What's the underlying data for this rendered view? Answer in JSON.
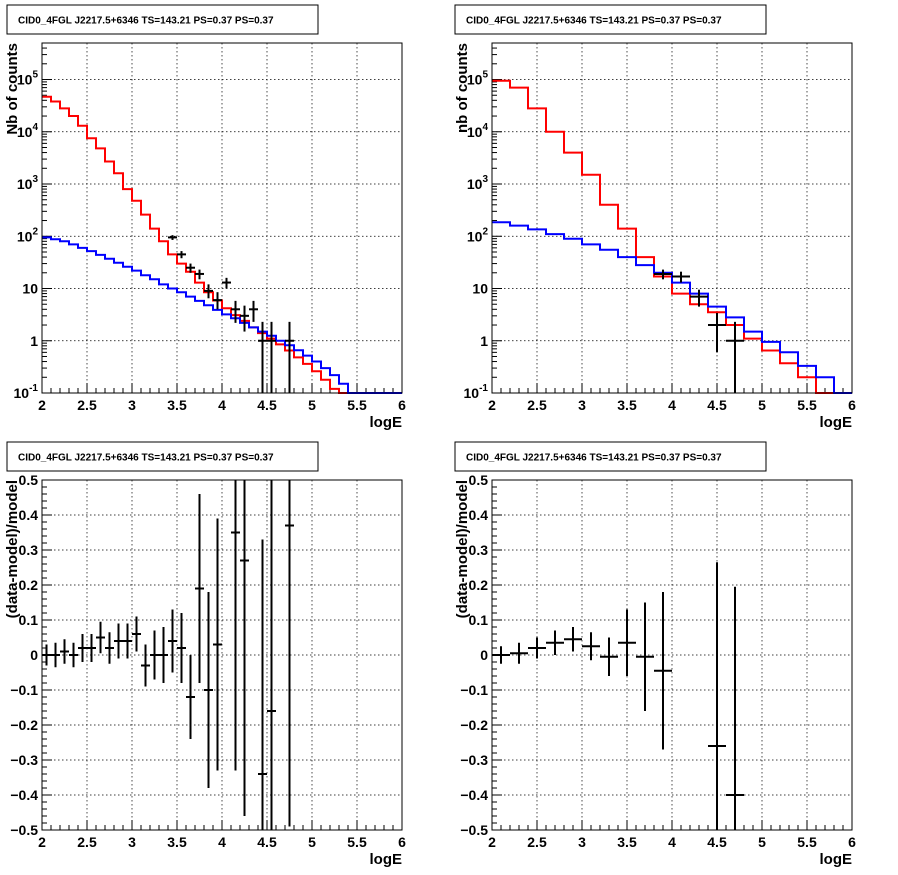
{
  "chart_data": [
    {
      "type": "histogram",
      "title": "CID0_4FGL J2217.5+6346 TS=143.21 PS=0.37 PS=0.37",
      "xlabel": "logE",
      "ylabel": "Nb of counts",
      "xlim": [
        2,
        6
      ],
      "ylim": [
        0.1,
        500000
      ],
      "yscale": "log",
      "grid": true,
      "x_ticks": [
        "2",
        "2.5",
        "3",
        "3.5",
        "4",
        "4.5",
        "5",
        "5.5",
        "6"
      ],
      "y_ticks": [
        "10^-1",
        "1",
        "10",
        "10^2",
        "10^3",
        "10^4",
        "10^5"
      ],
      "series": [
        {
          "kind": "step",
          "color": "#ff0000",
          "bin_edges": [
            2.0,
            2.1,
            2.2,
            2.3,
            2.4,
            2.5,
            2.6,
            2.7,
            2.8,
            2.9,
            3.0,
            3.1,
            3.2,
            3.3,
            3.4,
            3.5,
            3.6,
            3.7,
            3.8,
            3.9,
            4.0,
            4.1,
            4.2,
            4.3,
            4.4,
            4.5,
            4.6,
            4.7,
            4.8,
            4.9,
            5.0,
            5.1,
            5.2,
            5.3,
            5.4,
            5.5,
            5.6,
            5.7,
            5.8,
            5.9,
            6.0
          ],
          "values": [
            47000,
            38000,
            28000,
            20000,
            13000,
            7500,
            4800,
            2700,
            1600,
            800,
            480,
            260,
            140,
            80,
            45,
            30,
            21,
            13,
            8.5,
            5.9,
            4.2,
            3.1,
            2.4,
            1.8,
            1.4,
            1.1,
            0.85,
            0.65,
            0.48,
            0.36,
            0.26,
            0.18,
            0.12,
            0.1,
            0.1,
            0.1,
            0.1,
            0.1,
            0.1,
            0.1
          ]
        },
        {
          "kind": "step",
          "color": "#0000ff",
          "bin_edges": [
            2.0,
            2.1,
            2.2,
            2.3,
            2.4,
            2.5,
            2.6,
            2.7,
            2.8,
            2.9,
            3.0,
            3.1,
            3.2,
            3.3,
            3.4,
            3.5,
            3.6,
            3.7,
            3.8,
            3.9,
            4.0,
            4.1,
            4.2,
            4.3,
            4.4,
            4.5,
            4.6,
            4.7,
            4.8,
            4.9,
            5.0,
            5.1,
            5.2,
            5.3,
            5.4,
            5.5,
            5.6,
            5.7,
            5.8,
            5.9,
            6.0
          ],
          "values": [
            95,
            88,
            80,
            70,
            60,
            52,
            44,
            37,
            31,
            26,
            22,
            18,
            15,
            12,
            10,
            8.5,
            7.0,
            5.8,
            4.8,
            3.9,
            3.2,
            2.7,
            2.2,
            1.8,
            1.5,
            1.25,
            1.0,
            0.82,
            0.66,
            0.52,
            0.4,
            0.3,
            0.22,
            0.15,
            0.1,
            0.1,
            0.1,
            0.1,
            0.1,
            0.1
          ]
        },
        {
          "kind": "points",
          "color": "#000000",
          "x": [
            3.45,
            3.55,
            3.65,
            3.75,
            3.85,
            3.95,
            4.05,
            4.15,
            4.25,
            4.35,
            4.45,
            4.55,
            4.75
          ],
          "xerr": [
            0.05,
            0.05,
            0.05,
            0.05,
            0.05,
            0.05,
            0.05,
            0.05,
            0.05,
            0.05,
            0.05,
            0.05,
            0.05
          ],
          "y": [
            95,
            45,
            25,
            19,
            9,
            6,
            13,
            4,
            3,
            4,
            1,
            1,
            1
          ],
          "ylo": [
            85,
            38,
            20,
            15,
            6.5,
            4,
            10,
            2.2,
            1.5,
            2.3,
            0.1,
            0.1,
            0.1
          ],
          "yhi": [
            105,
            52,
            30,
            23,
            12,
            8.5,
            16,
            5.8,
            4.7,
            5.8,
            2.3,
            2.3,
            2.3
          ]
        }
      ]
    },
    {
      "type": "histogram",
      "title": "CID0_4FGL J2217.5+6346 TS=143.21 PS=0.37 PS=0.37",
      "xlabel": "logE",
      "ylabel": "nb of counts",
      "xlim": [
        2,
        6
      ],
      "ylim": [
        0.1,
        500000
      ],
      "yscale": "log",
      "grid": true,
      "x_ticks": [
        "2",
        "2.5",
        "3",
        "3.5",
        "4",
        "4.5",
        "5",
        "5.5",
        "6"
      ],
      "y_ticks": [
        "10^-1",
        "1",
        "10",
        "10^2",
        "10^3",
        "10^4",
        "10^5"
      ],
      "series": [
        {
          "kind": "step",
          "color": "#ff0000",
          "bin_edges": [
            2.0,
            2.2,
            2.4,
            2.6,
            2.8,
            3.0,
            3.2,
            3.4,
            3.6,
            3.8,
            4.0,
            4.2,
            4.4,
            4.6,
            4.8,
            5.0,
            5.2,
            5.4,
            5.6,
            5.8,
            6.0
          ],
          "values": [
            95000,
            70000,
            28000,
            10000,
            4000,
            1500,
            400,
            140,
            40,
            17,
            8,
            5,
            3.5,
            2,
            1.1,
            0.65,
            0.37,
            0.2,
            0.1,
            0.1
          ]
        },
        {
          "kind": "step",
          "color": "#0000ff",
          "bin_edges": [
            2.0,
            2.2,
            2.4,
            2.6,
            2.8,
            3.0,
            3.2,
            3.4,
            3.6,
            3.8,
            4.0,
            4.2,
            4.4,
            4.6,
            4.8,
            5.0,
            5.2,
            5.4,
            5.6,
            5.8,
            6.0
          ],
          "values": [
            185,
            160,
            135,
            110,
            90,
            70,
            55,
            40,
            28,
            20,
            13,
            8,
            4.5,
            2.8,
            1.5,
            0.95,
            0.6,
            0.33,
            0.2,
            0.1
          ]
        },
        {
          "kind": "points",
          "color": "#000000",
          "x": [
            3.9,
            4.1,
            4.3,
            4.5,
            4.7
          ],
          "xerr": [
            0.1,
            0.1,
            0.1,
            0.1,
            0.1
          ],
          "y": [
            19,
            17,
            7,
            2,
            1
          ],
          "ylo": [
            15,
            13,
            4.5,
            0.6,
            0.1
          ],
          "yhi": [
            23,
            21,
            9.5,
            3.4,
            2.3
          ]
        }
      ]
    },
    {
      "type": "scatter",
      "title": "CID0_4FGL J2217.5+6346 TS=143.21 PS=0.37 PS=0.37",
      "xlabel": "logE",
      "ylabel": "(data-model)/model",
      "xlim": [
        2,
        6
      ],
      "ylim": [
        -0.5,
        0.5
      ],
      "grid": true,
      "x_ticks": [
        "2",
        "2.5",
        "3",
        "3.5",
        "4",
        "4.5",
        "5",
        "5.5",
        "6"
      ],
      "y_ticks": [
        "-0.5",
        "-0.4",
        "-0.3",
        "-0.2",
        "-0.1",
        "0",
        "0.1",
        "0.2",
        "0.3",
        "0.4",
        "0.5"
      ],
      "series": [
        {
          "kind": "points",
          "color": "#000000",
          "x": [
            2.05,
            2.15,
            2.25,
            2.35,
            2.45,
            2.55,
            2.65,
            2.75,
            2.85,
            2.95,
            3.05,
            3.15,
            3.25,
            3.35,
            3.45,
            3.55,
            3.65,
            3.75,
            3.85,
            3.95,
            4.15,
            4.25,
            4.45,
            4.55,
            4.75
          ],
          "xerr": [
            0.05,
            0.05,
            0.05,
            0.05,
            0.05,
            0.05,
            0.05,
            0.05,
            0.05,
            0.05,
            0.05,
            0.05,
            0.05,
            0.05,
            0.05,
            0.05,
            0.05,
            0.05,
            0.05,
            0.05,
            0.05,
            0.05,
            0.05,
            0.05,
            0.05
          ],
          "y": [
            0.0,
            0.0,
            0.01,
            0.0,
            0.02,
            0.02,
            0.05,
            0.02,
            0.04,
            0.04,
            0.06,
            -0.03,
            0.0,
            0.0,
            0.04,
            0.02,
            -0.12,
            0.19,
            -0.1,
            0.03,
            0.35,
            0.27,
            -0.34,
            -0.16,
            0.37
          ],
          "yerr": [
            0.03,
            0.035,
            0.035,
            0.035,
            0.04,
            0.04,
            0.045,
            0.045,
            0.05,
            0.05,
            0.05,
            0.06,
            0.07,
            0.08,
            0.09,
            0.1,
            0.12,
            0.27,
            0.28,
            0.36,
            0.68,
            0.73,
            0.67,
            0.76,
            0.86
          ]
        }
      ]
    },
    {
      "type": "scatter",
      "title": "CID0_4FGL J2217.5+6346 TS=143.21 PS=0.37 PS=0.37",
      "xlabel": "logE",
      "ylabel": "(data-model)/model",
      "xlim": [
        2,
        6
      ],
      "ylim": [
        -0.5,
        0.5
      ],
      "grid": true,
      "x_ticks": [
        "2",
        "2.5",
        "3",
        "3.5",
        "4",
        "4.5",
        "5",
        "5.5",
        "6"
      ],
      "y_ticks": [
        "-0.5",
        "-0.4",
        "-0.3",
        "-0.2",
        "-0.1",
        "0",
        "0.1",
        "0.2",
        "0.3",
        "0.4",
        "0.5"
      ],
      "series": [
        {
          "kind": "points",
          "color": "#000000",
          "x": [
            2.1,
            2.3,
            2.5,
            2.7,
            2.9,
            3.1,
            3.3,
            3.5,
            3.7,
            3.9,
            4.5,
            4.7
          ],
          "xerr": [
            0.1,
            0.1,
            0.1,
            0.1,
            0.1,
            0.1,
            0.1,
            0.1,
            0.1,
            0.1,
            0.1,
            0.1
          ],
          "y": [
            0.0,
            0.005,
            0.02,
            0.035,
            0.045,
            0.025,
            -0.005,
            0.035,
            -0.005,
            -0.045,
            -0.26,
            -0.4
          ],
          "yerr": [
            0.025,
            0.03,
            0.03,
            0.035,
            0.035,
            0.04,
            0.055,
            0.095,
            0.155,
            0.225,
            0.525,
            0.595
          ]
        }
      ]
    }
  ]
}
